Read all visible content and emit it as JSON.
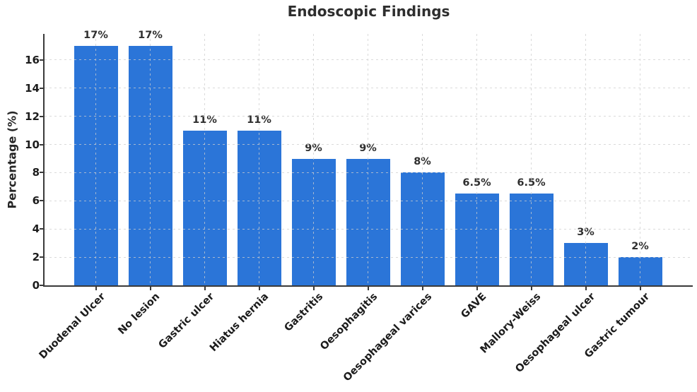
{
  "chart_data": {
    "type": "bar",
    "title": "Endoscopic Findings",
    "xlabel": "",
    "ylabel": "Percentage (%)",
    "categories": [
      "Duodenal Ulcer",
      "No lesion",
      "Gastric ulcer",
      "Hiatus hernia",
      "Gastritis",
      "Oesophagitis",
      "Oesophageal varices",
      "GAVE",
      "Mallory-Weiss",
      "Oesophageal ulcer",
      "Gastric tumour"
    ],
    "values": [
      17,
      17,
      11,
      11,
      9,
      9,
      8,
      6.5,
      6.5,
      3,
      2
    ],
    "bar_labels": [
      "17%",
      "17%",
      "11%",
      "11%",
      "9%",
      "9%",
      "8%",
      "6.5%",
      "6.5%",
      "3%",
      "2%"
    ],
    "yticks": [
      0,
      2,
      4,
      6,
      8,
      10,
      12,
      14,
      16
    ],
    "ylim": [
      0,
      17.85
    ],
    "grid": true,
    "legend": "none",
    "colors": {
      "bar": "#2b75d8",
      "grid": "#cdcdcd",
      "axis": "#3a3a3a",
      "tick_text": "#1c1c1c",
      "title_text": "#2e2e2e",
      "value_text": "#2f2f2f",
      "background": "#ffffff"
    }
  }
}
